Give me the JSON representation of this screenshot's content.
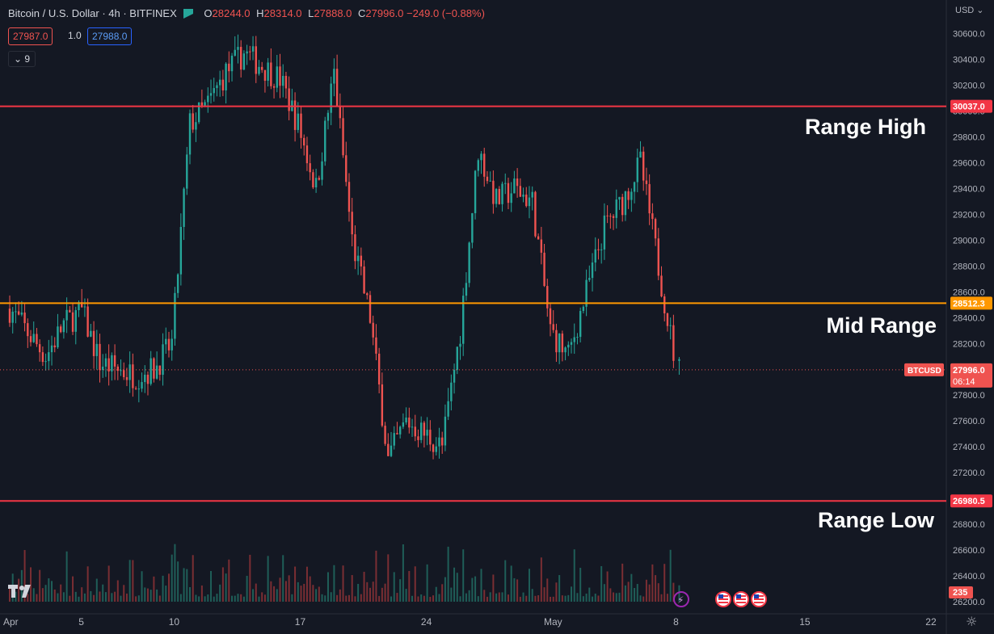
{
  "header": {
    "symbol": "Bitcoin / U.S. Dollar · 4h · BITFINEX",
    "o_label": "O",
    "o_value": "28244.0",
    "h_label": "H",
    "h_value": "28314.0",
    "l_label": "L",
    "l_value": "27888.0",
    "c_label": "C",
    "c_value": "27996.0",
    "change": "−249.0 (−0.88%)",
    "sell_price": "27987.0",
    "quantity": "1.0",
    "buy_price": "27988.0",
    "indicators_count": "9",
    "currency": "USD"
  },
  "colors": {
    "up": "#26a69a",
    "down": "#ef5350",
    "range_line": "#f23645",
    "mid_line": "#ff9800",
    "background": "#141823"
  },
  "annotations": {
    "range_high": "Range High",
    "mid_range": "Mid Range",
    "range_low": "Range Low"
  },
  "chart_data": {
    "type": "candlestick",
    "timeframe": "4h",
    "y_axis": {
      "ticks": [
        26200,
        26400,
        26600,
        26800,
        27000,
        27200,
        27400,
        27600,
        27800,
        28000,
        28200,
        28400,
        28600,
        28800,
        29000,
        29200,
        29400,
        29600,
        29800,
        30000,
        30200,
        30400,
        30600
      ],
      "tick_labels": [
        "26200.0",
        "26400.0",
        "26600.0",
        "26800.0",
        "27000.0",
        "27200.0",
        "27400.0",
        "27600.0",
        "27800.0",
        "28000.0",
        "28200.0",
        "28400.0",
        "28600.0",
        "28800.0",
        "29000.0",
        "29200.0",
        "29400.0",
        "29600.0",
        "29800.0",
        "30000.0",
        "30200.0",
        "30400.0",
        "30600.0"
      ],
      "range": [
        26200,
        30760
      ]
    },
    "x_axis": {
      "ticks": [
        {
          "label": "Apr",
          "date": "2023-04-01"
        },
        {
          "label": "5",
          "date": "2023-04-05"
        },
        {
          "label": "10",
          "date": "2023-04-10"
        },
        {
          "label": "17",
          "date": "2023-04-17"
        },
        {
          "label": "24",
          "date": "2023-04-24"
        },
        {
          "label": "May",
          "date": "2023-05-01"
        },
        {
          "label": "8",
          "date": "2023-05-08"
        },
        {
          "label": "15",
          "date": "2023-05-15"
        },
        {
          "label": "22",
          "date": "2023-05-22"
        }
      ],
      "range": [
        "2023-04-01",
        "2023-05-24"
      ]
    },
    "horizontal_lines": [
      {
        "value": 30037.0,
        "label": "30037.0",
        "color": "#f23645"
      },
      {
        "value": 28512.3,
        "label": "28512.3",
        "color": "#ff9800"
      },
      {
        "value": 26980.5,
        "label": "26980.5",
        "color": "#f23645"
      }
    ],
    "last_price": {
      "value": 27996.0,
      "label": "27996.0",
      "symbol_tag": "BTCUSD",
      "countdown": "06:14"
    },
    "volume_last": {
      "value": 235,
      "label": "235"
    },
    "anchors": [
      {
        "date": "2023-04-01",
        "price": 28470
      },
      {
        "date": "2023-04-03",
        "price": 28100
      },
      {
        "date": "2023-04-04",
        "price": 28350
      },
      {
        "date": "2023-04-05",
        "price": 28450
      },
      {
        "date": "2023-04-06",
        "price": 28050
      },
      {
        "date": "2023-04-08",
        "price": 27950
      },
      {
        "date": "2023-04-09",
        "price": 28000
      },
      {
        "date": "2023-04-10",
        "price": 28200
      },
      {
        "date": "2023-04-11",
        "price": 29900
      },
      {
        "date": "2023-04-12",
        "price": 30050
      },
      {
        "date": "2023-04-13",
        "price": 30300
      },
      {
        "date": "2023-04-14",
        "price": 30450
      },
      {
        "date": "2023-04-15",
        "price": 30350
      },
      {
        "date": "2023-04-16",
        "price": 30250
      },
      {
        "date": "2023-04-17",
        "price": 29900
      },
      {
        "date": "2023-04-18",
        "price": 29400
      },
      {
        "date": "2023-04-19",
        "price": 30300
      },
      {
        "date": "2023-04-20",
        "price": 29000
      },
      {
        "date": "2023-04-21",
        "price": 28400
      },
      {
        "date": "2023-04-22",
        "price": 27300
      },
      {
        "date": "2023-04-23",
        "price": 27600
      },
      {
        "date": "2023-04-24",
        "price": 27500
      },
      {
        "date": "2023-04-25",
        "price": 27400
      },
      {
        "date": "2023-04-26",
        "price": 28300
      },
      {
        "date": "2023-04-27",
        "price": 29700
      },
      {
        "date": "2023-04-28",
        "price": 29300
      },
      {
        "date": "2023-04-29",
        "price": 29400
      },
      {
        "date": "2023-04-30",
        "price": 29300
      },
      {
        "date": "2023-05-01",
        "price": 28300
      },
      {
        "date": "2023-05-02",
        "price": 28100
      },
      {
        "date": "2023-05-03",
        "price": 28600
      },
      {
        "date": "2023-05-04",
        "price": 29100
      },
      {
        "date": "2023-05-05",
        "price": 29300
      },
      {
        "date": "2023-05-06",
        "price": 29600
      },
      {
        "date": "2023-05-07",
        "price": 28800
      },
      {
        "date": "2023-05-08",
        "price": 28000
      }
    ]
  }
}
